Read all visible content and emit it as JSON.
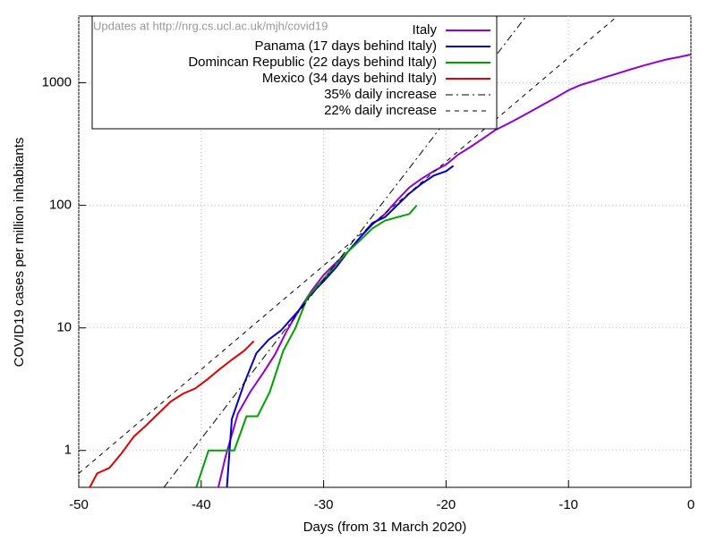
{
  "chart_data": {
    "type": "line",
    "annotation": "Updates at http://nrg.cs.ucl.ac.uk/mjh/covid19",
    "x_label": "Days (from 31 March 2020)",
    "y_label": "COVID19 cases per million inhabitants",
    "xlim": [
      -50,
      0
    ],
    "ylim": [
      0.5,
      3500
    ],
    "log_y": true,
    "grid": true,
    "xticks": [
      -50,
      -40,
      -30,
      -20,
      -10,
      0
    ],
    "yticks": [
      1,
      10,
      100,
      1000
    ],
    "legend": "top-left",
    "series": [
      {
        "name": "Italy",
        "color": "#9400d3",
        "dash": "solid",
        "x": [
          -38.6,
          -38,
          -37,
          -36,
          -35,
          -34,
          -33,
          -32,
          -31,
          -30,
          -29,
          -28,
          -27,
          -26,
          -25,
          -24,
          -23,
          -22,
          -21,
          -20,
          -19,
          -18,
          -17,
          -16,
          -15,
          -14,
          -13,
          -12,
          -11,
          -10,
          -9,
          -8,
          -7,
          -6,
          -5,
          -4,
          -3,
          -2,
          -1,
          0
        ],
        "values": [
          0.5,
          0.9,
          2.0,
          3.0,
          4.2,
          6.0,
          9.5,
          14,
          20,
          27,
          34,
          42,
          55,
          70,
          85,
          110,
          140,
          165,
          190,
          215,
          260,
          300,
          350,
          410,
          460,
          520,
          590,
          670,
          760,
          870,
          960,
          1030,
          1110,
          1190,
          1280,
          1370,
          1460,
          1550,
          1620,
          1700
        ]
      },
      {
        "name": "Panama (17 days behind Italy)",
        "color": "#0000d0",
        "dash": "solid",
        "x": [
          -37.9,
          -37.5,
          -36.5,
          -35.5,
          -34.5,
          -33.5,
          -32,
          -31,
          -30,
          -29,
          -28,
          -27,
          -26,
          -25,
          -24,
          -23,
          -22,
          -21,
          -20,
          -19.4
        ],
        "values": [
          0.5,
          1.8,
          3.5,
          6.2,
          8.0,
          9.5,
          14,
          19,
          24,
          31,
          42,
          55,
          72,
          80,
          100,
          125,
          150,
          175,
          190,
          210
        ]
      },
      {
        "name": "Domincan Republic (22 days behind Italy)",
        "color": "#00a000",
        "dash": "solid",
        "x": [
          -40.4,
          -39.4,
          -37.3,
          -36.3,
          -35.4,
          -34.4,
          -33.3,
          -32.3,
          -31.3,
          -30,
          -29,
          -28,
          -27,
          -26,
          -25,
          -24,
          -23,
          -22.4
        ],
        "values": [
          0.5,
          1,
          1,
          1.9,
          1.9,
          3,
          6.5,
          10,
          18,
          25,
          33,
          42,
          52,
          65,
          75,
          80,
          85,
          100
        ]
      },
      {
        "name": "Mexico (34 days behind Italy)",
        "color": "#e00000",
        "dash": "solid",
        "x": [
          -49.1,
          -48.5,
          -47.5,
          -46.5,
          -45.5,
          -44.5,
          -43.5,
          -42.5,
          -41.5,
          -40.5,
          -39.5,
          -38.5,
          -37.5,
          -36.5,
          -35.7
        ],
        "values": [
          0.5,
          0.65,
          0.72,
          0.95,
          1.3,
          1.6,
          2.0,
          2.5,
          2.9,
          3.2,
          3.8,
          4.6,
          5.5,
          6.5,
          7.8
        ]
      },
      {
        "name": "35% daily increase",
        "color": "#000000",
        "dash": "dash-dot",
        "x": [
          -43.05,
          -13.45
        ],
        "values": [
          0.5,
          3500
        ]
      },
      {
        "name": "22% daily increase",
        "color": "#000000",
        "dash": "dash",
        "x": [
          -50,
          -6
        ],
        "values": [
          0.65,
          3500
        ]
      }
    ]
  }
}
